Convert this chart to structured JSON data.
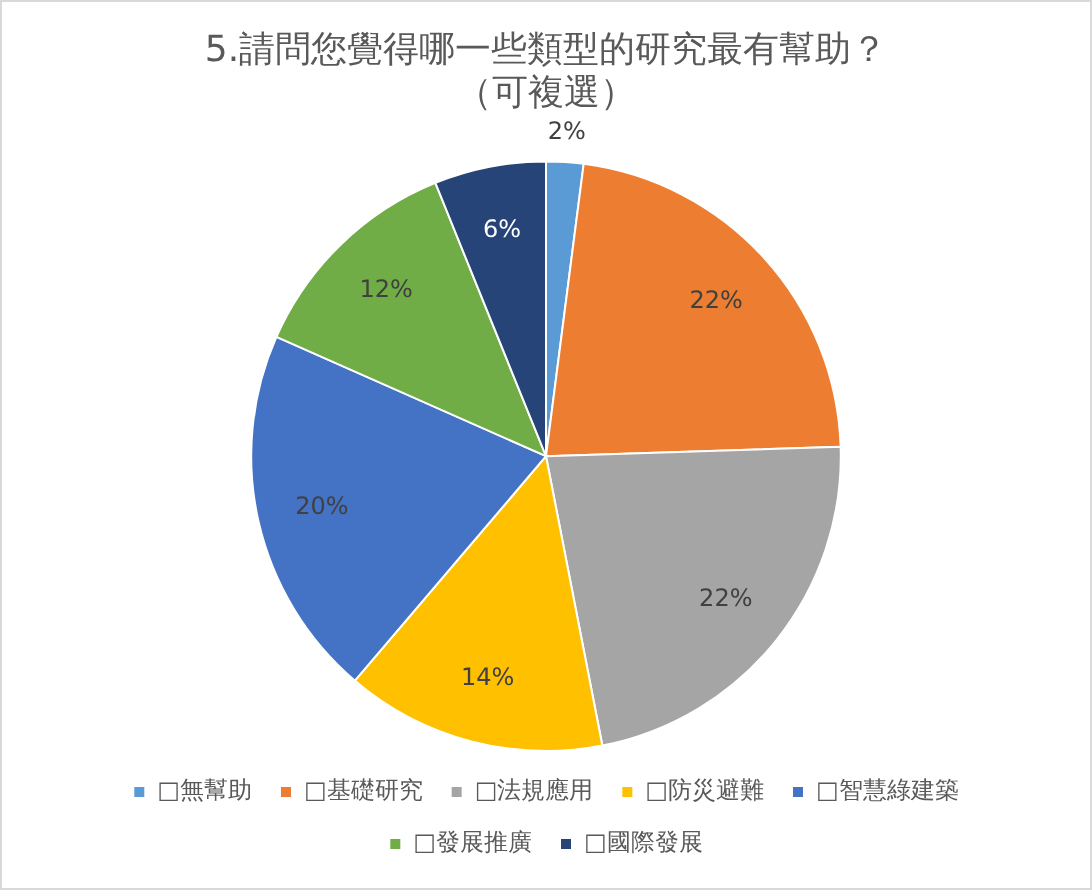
{
  "chart_data": {
    "type": "pie",
    "title": "5.請問您覺得哪一些類型的研究最有幫助？（可複選）",
    "categories": [
      "□無幫助",
      "□基礎研究",
      "□法規應用",
      "□防災避難",
      "□智慧綠建築",
      "□發展推廣",
      "□國際發展"
    ],
    "values": [
      2,
      22,
      22,
      14,
      20,
      12,
      6
    ],
    "value_labels": [
      "2%",
      "22%",
      "22%",
      "14%",
      "20%",
      "12%",
      "6%"
    ],
    "colors": [
      "#5b9bd5",
      "#ed7d31",
      "#a5a5a5",
      "#ffc000",
      "#4472c4",
      "#70ad47",
      "#264478"
    ],
    "legend": "bottom"
  }
}
